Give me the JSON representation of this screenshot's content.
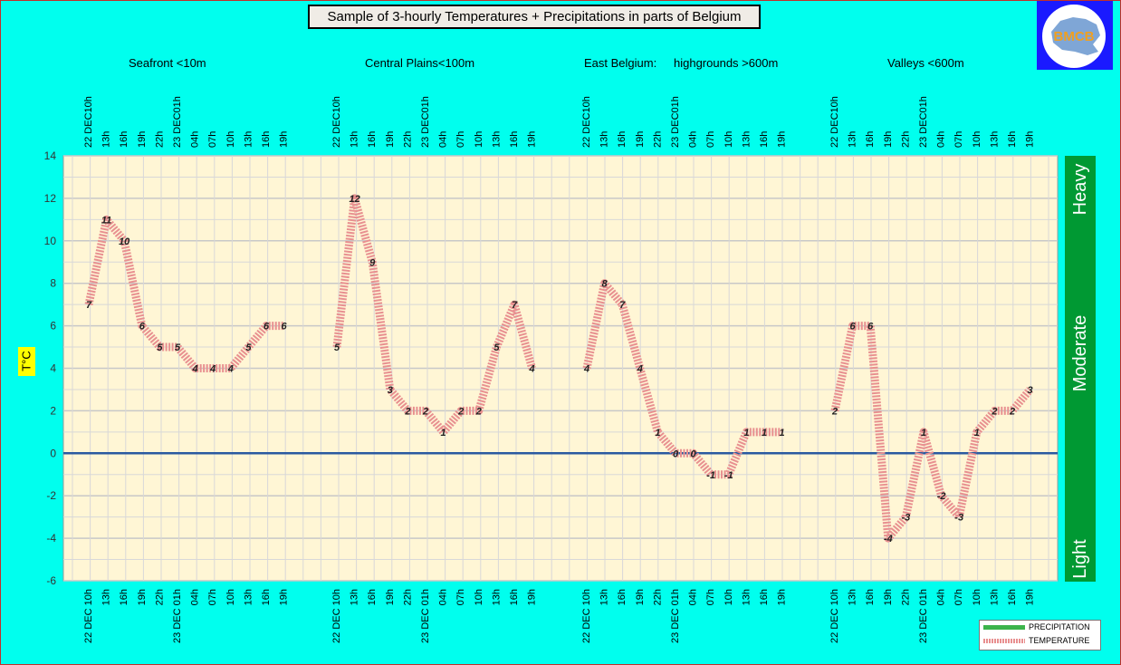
{
  "title": "Sample of 3-hourly Temperatures + Precipitations in parts of Belgium",
  "logo": {
    "text": "BMCB",
    "background": "#1a1aff",
    "text_color": "#f0a020"
  },
  "regions": [
    "Seafront <10m",
    "Central Plains<100m",
    "East Belgium:",
    "highgrounds >600m",
    "Valleys <600m"
  ],
  "ylabel_text": "T°C",
  "legend": {
    "precipitation": "PRECIPITATION",
    "temperature": "TEMPERATURE"
  },
  "colors": {
    "background": "#00ffee",
    "plot_area": "#fff6d5",
    "temperature": "#e89090",
    "precipitation": "#3cb44b",
    "zero_line": "#2a5aa0",
    "band": "#009933"
  },
  "chart_data": {
    "type": "line",
    "title": "Sample of 3-hourly Temperatures + Precipitations in parts of Belgium",
    "ylabel": "T°C",
    "ylim": [
      -6,
      14
    ],
    "yticks": [
      "14",
      "12",
      "10",
      "8",
      "6",
      "4",
      "2",
      "0",
      "-2",
      "-4",
      "-6"
    ],
    "grid": true,
    "legend_position": "bottom-right",
    "top_tick_labels": [
      "22 DEC10h",
      "13h",
      "16h",
      "19h",
      "22h",
      "23 DEC01h",
      "04h",
      "07h",
      "10h",
      "13h",
      "16h",
      "19h"
    ],
    "bottom_tick_labels": [
      "22 DEC 10h",
      "13h",
      "16h",
      "19h",
      "22h",
      "23 DEC 01h",
      "04h",
      "07h",
      "10h",
      "13h",
      "16h",
      "19h"
    ],
    "precipitation_bands": [
      "Heavy",
      "Moderate",
      "Light"
    ],
    "series": [
      {
        "name": "Seafront <10m",
        "values": [
          7,
          11,
          10,
          6,
          5,
          5,
          4,
          4,
          4,
          5,
          6,
          6
        ],
        "labels": [
          "7",
          "11",
          "10",
          "6",
          "5",
          "5",
          "4",
          "4",
          "4",
          "5",
          "6",
          "6"
        ]
      },
      {
        "name": "Central Plains<100m",
        "values": [
          5,
          12,
          9,
          3,
          2,
          2,
          1,
          2,
          2,
          5,
          7,
          4
        ],
        "labels": [
          "5",
          "12",
          "9",
          "3",
          "2",
          "2",
          "1",
          "2",
          "2",
          "5",
          "7",
          "4"
        ]
      },
      {
        "name": "East Belgium: highgrounds >600m",
        "values": [
          4,
          8,
          7,
          4,
          1,
          0,
          0,
          -1,
          -1,
          1,
          1,
          1
        ],
        "labels": [
          "4",
          "8",
          "7",
          "4",
          "1",
          "0",
          "0",
          "-1",
          "-1",
          "1",
          "1",
          "1"
        ]
      },
      {
        "name": "Valleys <600m",
        "values": [
          2,
          6,
          6,
          -4,
          -3,
          1,
          -2,
          -3,
          1,
          2,
          2,
          3
        ],
        "labels": [
          "2",
          "6",
          "6",
          "-4",
          "-3",
          "1",
          "-2",
          "-3",
          "1",
          "2",
          "2",
          "3"
        ]
      }
    ]
  }
}
